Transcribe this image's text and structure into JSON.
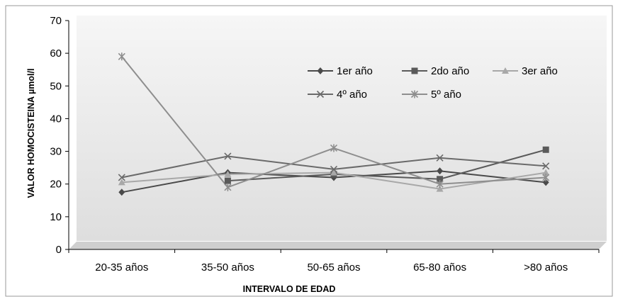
{
  "chart_data": {
    "type": "line",
    "title": "",
    "xlabel": "INTERVALO DE EDAD",
    "ylabel": "VALOR  HOMOCISTEINA µmol/l",
    "categories": [
      "20-35 años",
      "35-50 años",
      "50-65 años",
      "65-80 años",
      ">80 años"
    ],
    "ylim": [
      0,
      70
    ],
    "yticks": [
      0,
      10,
      20,
      30,
      40,
      50,
      60,
      70
    ],
    "grid": false,
    "legend_position": "top-right, inside plot",
    "series": [
      {
        "name": "1er año",
        "marker": "diamond",
        "color": "#4a4a4a",
        "values": [
          17.5,
          23.5,
          22,
          24,
          20.5
        ]
      },
      {
        "name": "2do año",
        "marker": "square",
        "color": "#5a5a5a",
        "values": [
          null,
          21,
          23,
          21.5,
          30.5
        ]
      },
      {
        "name": "3er año",
        "marker": "triangle",
        "color": "#a8a8a8",
        "values": [
          20.5,
          23,
          23.5,
          18.5,
          23.5
        ]
      },
      {
        "name": "4º año",
        "marker": "x",
        "color": "#6a6a6a",
        "values": [
          22,
          28.5,
          24.5,
          28,
          25.5
        ]
      },
      {
        "name": "5º año",
        "marker": "star",
        "color": "#8e8e8e",
        "values": [
          59,
          19,
          31,
          20,
          22
        ]
      }
    ]
  }
}
